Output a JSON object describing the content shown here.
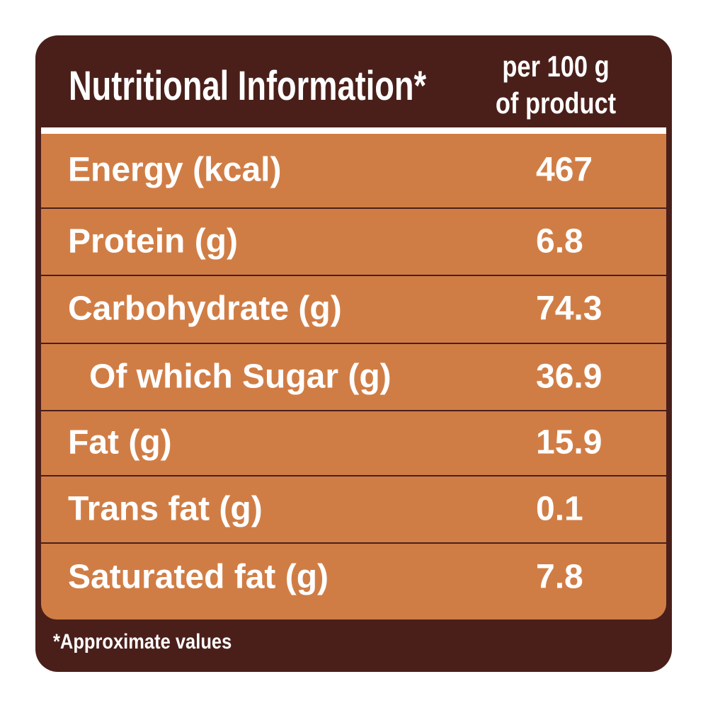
{
  "header": {
    "title": "Nutritional Information*",
    "per_line1": "per 100 g",
    "per_line2": "of product"
  },
  "rows": [
    {
      "label": "Energy (kcal)",
      "value": "467"
    },
    {
      "label": "Protein (g)",
      "value": "6.8"
    },
    {
      "label": "Carbohydrate (g)",
      "value": "74.3"
    },
    {
      "label": "Of which Sugar (g)",
      "value": "36.9"
    },
    {
      "label": "Fat (g)",
      "value": "15.9"
    },
    {
      "label": "Trans fat (g)",
      "value": "0.1"
    },
    {
      "label": "Saturated fat (g)",
      "value": "7.8"
    }
  ],
  "footnote": "*Approximate values",
  "colors": {
    "dark": "#4a1f1a",
    "orange": "#d07d45",
    "text": "#ffffff"
  }
}
